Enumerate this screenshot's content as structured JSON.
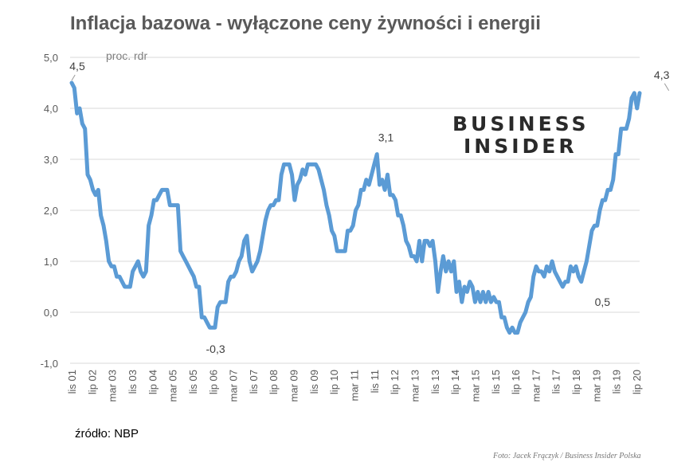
{
  "title": "Inflacja bazowa - wyłączone ceny żywności i energii",
  "source": "źródło: NBP",
  "photo_credit": "Foto: Jacek Frączyk / Business Insider Polska",
  "logo": {
    "line1": "BUSINESS",
    "line2": "INSIDER"
  },
  "colors": {
    "line": "#5b9bd5",
    "grid": "#d9d9d9",
    "text": "#595959"
  },
  "chart_data": {
    "type": "line",
    "title": "Inflacja bazowa - wyłączone ceny żywności i energii",
    "ylabel": "proc. rdr",
    "ylim": [
      -1.0,
      5.0
    ],
    "yticks": [
      "5,0",
      "4,0",
      "3,0",
      "2,0",
      "1,0",
      "0,0",
      "-1,0"
    ],
    "grid": true,
    "x_labels": [
      "lis 01",
      "lip 02",
      "mar 03",
      "lis 03",
      "lip 04",
      "mar 05",
      "lis 05",
      "lip 06",
      "mar 07",
      "lis 07",
      "lip 08",
      "mar 09",
      "lis 09",
      "lip 10",
      "mar 11",
      "lis 11",
      "lip 12",
      "mar 13",
      "lis 13",
      "lip 14",
      "mar 15",
      "lis 15",
      "lip 16",
      "mar 17",
      "lis 17",
      "lip 18",
      "mar 19",
      "lis 19",
      "lip 20"
    ],
    "annotations": [
      {
        "label": "4,5",
        "x": 0,
        "y": 4.5
      },
      {
        "label": "-0,3",
        "x": 56,
        "y": -0.3
      },
      {
        "label": "3,1",
        "x": 119,
        "y": 3.1
      },
      {
        "label": "0,5",
        "x": 200,
        "y": 0.5
      },
      {
        "label": "4,3",
        "x": 225,
        "y": 4.3
      }
    ],
    "series": [
      {
        "points": [
          [
            0,
            4.5
          ],
          [
            1,
            4.4
          ],
          [
            2,
            3.9
          ],
          [
            3,
            4.0
          ],
          [
            4,
            3.7
          ],
          [
            5,
            3.6
          ],
          [
            6,
            2.7
          ],
          [
            7,
            2.6
          ],
          [
            8,
            2.4
          ],
          [
            9,
            2.3
          ],
          [
            10,
            2.4
          ],
          [
            11,
            1.9
          ],
          [
            12,
            1.7
          ],
          [
            13,
            1.4
          ],
          [
            14,
            1.0
          ],
          [
            15,
            0.9
          ],
          [
            16,
            0.9
          ],
          [
            17,
            0.7
          ],
          [
            18,
            0.7
          ],
          [
            19,
            0.6
          ],
          [
            20,
            0.5
          ],
          [
            22,
            0.5
          ],
          [
            23,
            0.8
          ],
          [
            24,
            0.9
          ],
          [
            25,
            1.0
          ],
          [
            26,
            0.8
          ],
          [
            27,
            0.7
          ],
          [
            28,
            0.8
          ],
          [
            29,
            1.7
          ],
          [
            30,
            1.9
          ],
          [
            31,
            2.2
          ],
          [
            32,
            2.2
          ],
          [
            33,
            2.3
          ],
          [
            34,
            2.4
          ],
          [
            36,
            2.4
          ],
          [
            37,
            2.1
          ],
          [
            40,
            2.1
          ],
          [
            41,
            1.2
          ],
          [
            42,
            1.1
          ],
          [
            43,
            1.0
          ],
          [
            44,
            0.9
          ],
          [
            45,
            0.8
          ],
          [
            46,
            0.7
          ],
          [
            47,
            0.5
          ],
          [
            48,
            0.5
          ],
          [
            49,
            -0.1
          ],
          [
            50,
            -0.1
          ],
          [
            51,
            -0.2
          ],
          [
            52,
            -0.3
          ],
          [
            54,
            -0.3
          ],
          [
            55,
            0.1
          ],
          [
            56,
            0.2
          ],
          [
            58,
            0.2
          ],
          [
            59,
            0.6
          ],
          [
            60,
            0.7
          ],
          [
            61,
            0.7
          ],
          [
            62,
            0.8
          ],
          [
            63,
            1.0
          ],
          [
            64,
            1.1
          ],
          [
            65,
            1.4
          ],
          [
            66,
            1.5
          ],
          [
            67,
            1.0
          ],
          [
            68,
            0.8
          ],
          [
            69,
            0.9
          ],
          [
            70,
            1.0
          ],
          [
            71,
            1.2
          ],
          [
            72,
            1.5
          ],
          [
            73,
            1.8
          ],
          [
            74,
            2.0
          ],
          [
            75,
            2.1
          ],
          [
            76,
            2.1
          ],
          [
            77,
            2.2
          ],
          [
            78,
            2.2
          ],
          [
            79,
            2.7
          ],
          [
            80,
            2.9
          ],
          [
            82,
            2.9
          ],
          [
            83,
            2.7
          ],
          [
            84,
            2.2
          ],
          [
            85,
            2.5
          ],
          [
            86,
            2.6
          ],
          [
            87,
            2.8
          ],
          [
            88,
            2.7
          ],
          [
            89,
            2.9
          ],
          [
            92,
            2.9
          ],
          [
            93,
            2.8
          ],
          [
            94,
            2.6
          ],
          [
            95,
            2.4
          ],
          [
            96,
            2.1
          ],
          [
            97,
            1.9
          ],
          [
            98,
            1.6
          ],
          [
            99,
            1.5
          ],
          [
            100,
            1.2
          ],
          [
            102,
            1.2
          ],
          [
            103,
            1.2
          ],
          [
            104,
            1.6
          ],
          [
            105,
            1.6
          ],
          [
            106,
            1.7
          ],
          [
            107,
            2.0
          ],
          [
            108,
            2.1
          ],
          [
            109,
            2.4
          ],
          [
            110,
            2.4
          ],
          [
            111,
            2.6
          ],
          [
            112,
            2.5
          ],
          [
            113,
            2.7
          ],
          [
            114,
            2.9
          ],
          [
            115,
            3.1
          ],
          [
            116,
            2.5
          ],
          [
            117,
            2.6
          ],
          [
            118,
            2.4
          ],
          [
            119,
            2.7
          ],
          [
            120,
            2.3
          ],
          [
            121,
            2.3
          ],
          [
            122,
            2.2
          ],
          [
            123,
            1.9
          ],
          [
            124,
            1.9
          ],
          [
            125,
            1.7
          ],
          [
            126,
            1.4
          ],
          [
            127,
            1.3
          ],
          [
            128,
            1.1
          ],
          [
            129,
            1.1
          ],
          [
            130,
            1.0
          ],
          [
            131,
            1.4
          ],
          [
            132,
            1.0
          ],
          [
            133,
            1.4
          ],
          [
            134,
            1.4
          ],
          [
            135,
            1.3
          ],
          [
            136,
            1.4
          ],
          [
            137,
            1.0
          ],
          [
            138,
            0.4
          ],
          [
            139,
            0.8
          ],
          [
            140,
            1.1
          ],
          [
            141,
            0.8
          ],
          [
            142,
            1.0
          ],
          [
            143,
            0.8
          ],
          [
            144,
            1.0
          ],
          [
            145,
            0.4
          ],
          [
            146,
            0.6
          ],
          [
            147,
            0.2
          ],
          [
            148,
            0.5
          ],
          [
            149,
            0.4
          ],
          [
            150,
            0.6
          ],
          [
            151,
            0.5
          ],
          [
            152,
            0.2
          ],
          [
            153,
            0.4
          ],
          [
            154,
            0.2
          ],
          [
            155,
            0.4
          ],
          [
            156,
            0.2
          ],
          [
            157,
            0.4
          ],
          [
            158,
            0.2
          ],
          [
            159,
            0.3
          ],
          [
            160,
            0.2
          ],
          [
            161,
            0.2
          ],
          [
            162,
            -0.1
          ],
          [
            163,
            -0.1
          ],
          [
            164,
            -0.3
          ],
          [
            165,
            -0.4
          ],
          [
            166,
            -0.3
          ],
          [
            167,
            -0.4
          ],
          [
            168,
            -0.4
          ],
          [
            169,
            -0.2
          ],
          [
            170,
            -0.1
          ],
          [
            171,
            0.0
          ],
          [
            172,
            0.2
          ],
          [
            173,
            0.3
          ],
          [
            174,
            0.7
          ],
          [
            175,
            0.9
          ],
          [
            176,
            0.8
          ],
          [
            177,
            0.8
          ],
          [
            178,
            0.7
          ],
          [
            179,
            0.9
          ],
          [
            180,
            0.8
          ],
          [
            181,
            1.0
          ],
          [
            182,
            0.8
          ],
          [
            183,
            0.7
          ],
          [
            184,
            0.6
          ],
          [
            185,
            0.5
          ],
          [
            186,
            0.6
          ],
          [
            187,
            0.6
          ],
          [
            188,
            0.9
          ],
          [
            189,
            0.8
          ],
          [
            190,
            0.9
          ],
          [
            191,
            0.7
          ],
          [
            192,
            0.6
          ],
          [
            193,
            0.8
          ],
          [
            194,
            1.0
          ],
          [
            195,
            1.3
          ],
          [
            196,
            1.6
          ],
          [
            197,
            1.7
          ],
          [
            198,
            1.7
          ],
          [
            199,
            2.0
          ],
          [
            200,
            2.2
          ],
          [
            201,
            2.2
          ],
          [
            202,
            2.4
          ],
          [
            203,
            2.4
          ],
          [
            204,
            2.6
          ],
          [
            205,
            3.1
          ],
          [
            206,
            3.1
          ],
          [
            207,
            3.6
          ],
          [
            209,
            3.6
          ],
          [
            210,
            3.8
          ],
          [
            211,
            4.2
          ],
          [
            212,
            4.3
          ],
          [
            213,
            4.0
          ],
          [
            214,
            4.3
          ]
        ]
      }
    ]
  }
}
